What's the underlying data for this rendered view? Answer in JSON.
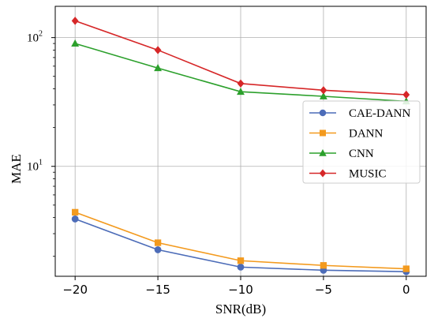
{
  "chart_data": {
    "type": "line",
    "xlabel": "SNR(dB)",
    "ylabel": "MAE",
    "x": [
      -20,
      -15,
      -10,
      -5,
      0
    ],
    "x_ticks": [
      -20,
      -15,
      -10,
      -5,
      0
    ],
    "x_tick_labels": [
      "−20",
      "−15",
      "−10",
      "−5",
      "0"
    ],
    "xlim": [
      -21.2,
      1.2
    ],
    "y_scale": "log",
    "ylim": [
      1.4,
      175
    ],
    "y_ticks": [
      10,
      100
    ],
    "y_tick_labels": [
      "10¹",
      "10²"
    ],
    "grid": true,
    "legend_position": "center-right",
    "series": [
      {
        "name": "CAE-DANN",
        "color": "#4c6cb8",
        "marker": "circle",
        "values": [
          3.9,
          2.25,
          1.65,
          1.56,
          1.52
        ]
      },
      {
        "name": "DANN",
        "color": "#f39a1e",
        "marker": "square",
        "values": [
          4.4,
          2.55,
          1.85,
          1.7,
          1.6
        ]
      },
      {
        "name": "CNN",
        "color": "#2ca02c",
        "marker": "triangle",
        "values": [
          90,
          58,
          38,
          35,
          32
        ]
      },
      {
        "name": "MUSIC",
        "color": "#d62728",
        "marker": "diamond",
        "values": [
          135,
          80,
          44,
          39,
          36
        ]
      }
    ]
  }
}
